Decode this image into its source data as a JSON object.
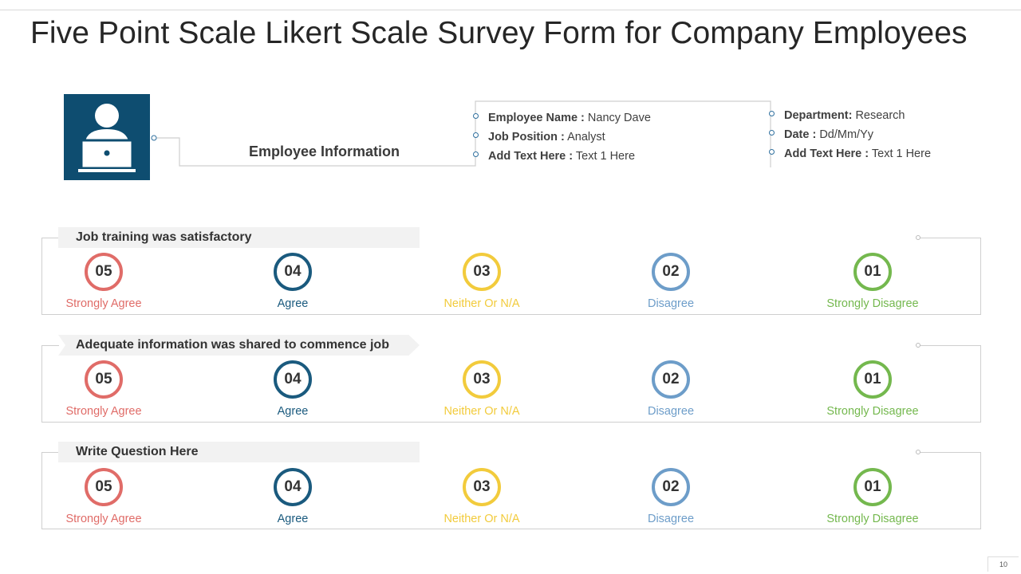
{
  "title": "Five Point Scale Likert Scale Survey Form for Company Employees",
  "employee": {
    "section_label": "Employee Information",
    "avatar_icon": "user-at-laptop-icon",
    "left_column": [
      {
        "key": "Employee Name :",
        "value": "Nancy Dave"
      },
      {
        "key": "Job Position :",
        "value": "Analyst"
      },
      {
        "key": "Add  Text Here :",
        "value": "Text 1 Here"
      }
    ],
    "right_column": [
      {
        "key": "Department:",
        "value": "Research"
      },
      {
        "key": "Date :",
        "value": "Dd/Mm/Yy"
      },
      {
        "key": "Add  Text Here :",
        "value": "Text 1 Here"
      }
    ]
  },
  "scale": [
    {
      "number": "05",
      "label": "Strongly Agree",
      "color": "#e06c68"
    },
    {
      "number": "04",
      "label": "Agree",
      "color": "#1a5a7e"
    },
    {
      "number": "03",
      "label": "Neither Or N/A",
      "color": "#f2cb3c"
    },
    {
      "number": "02",
      "label": "Disagree",
      "color": "#6d9dc9"
    },
    {
      "number": "01",
      "label": "Strongly Disagree",
      "color": "#74b84e"
    }
  ],
  "questions": [
    {
      "text": "Job training was satisfactory"
    },
    {
      "text": "Adequate information was shared to commence job"
    },
    {
      "text": "Write Question Here"
    }
  ],
  "page_number": "10"
}
